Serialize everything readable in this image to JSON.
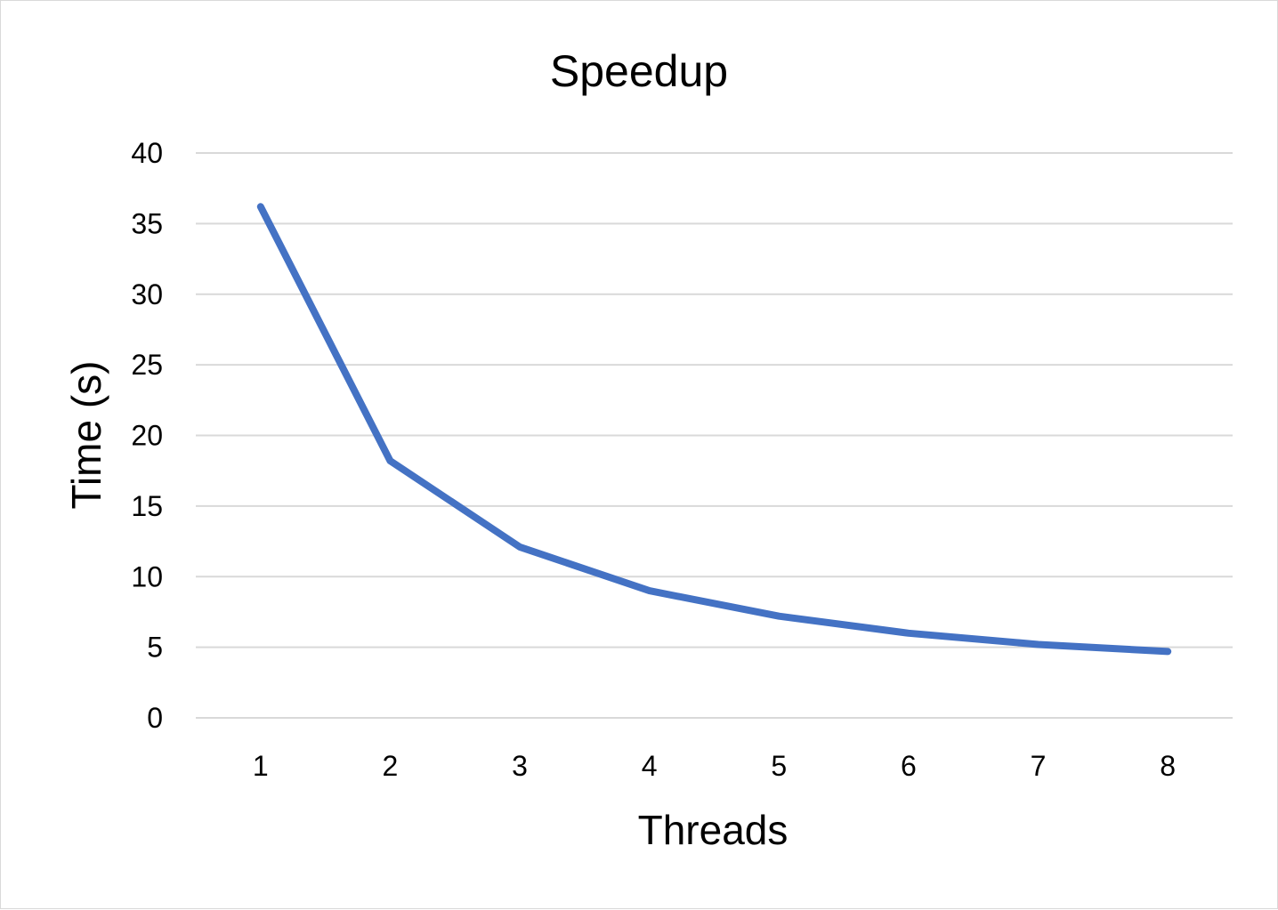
{
  "chart_data": {
    "type": "line",
    "title": "Speedup",
    "xlabel": "Threads",
    "ylabel": "Time (s)",
    "categories": [
      "1",
      "2",
      "3",
      "4",
      "5",
      "6",
      "7",
      "8"
    ],
    "y_ticks": [
      "0",
      "5",
      "10",
      "15",
      "20",
      "25",
      "30",
      "35",
      "40"
    ],
    "ylim": [
      0,
      40
    ],
    "grid": true,
    "legend": "none",
    "series": [
      {
        "values": [
          36.2,
          18.2,
          12.1,
          9.0,
          7.2,
          6.0,
          5.2,
          4.7
        ],
        "color": "#4472C4"
      }
    ]
  }
}
